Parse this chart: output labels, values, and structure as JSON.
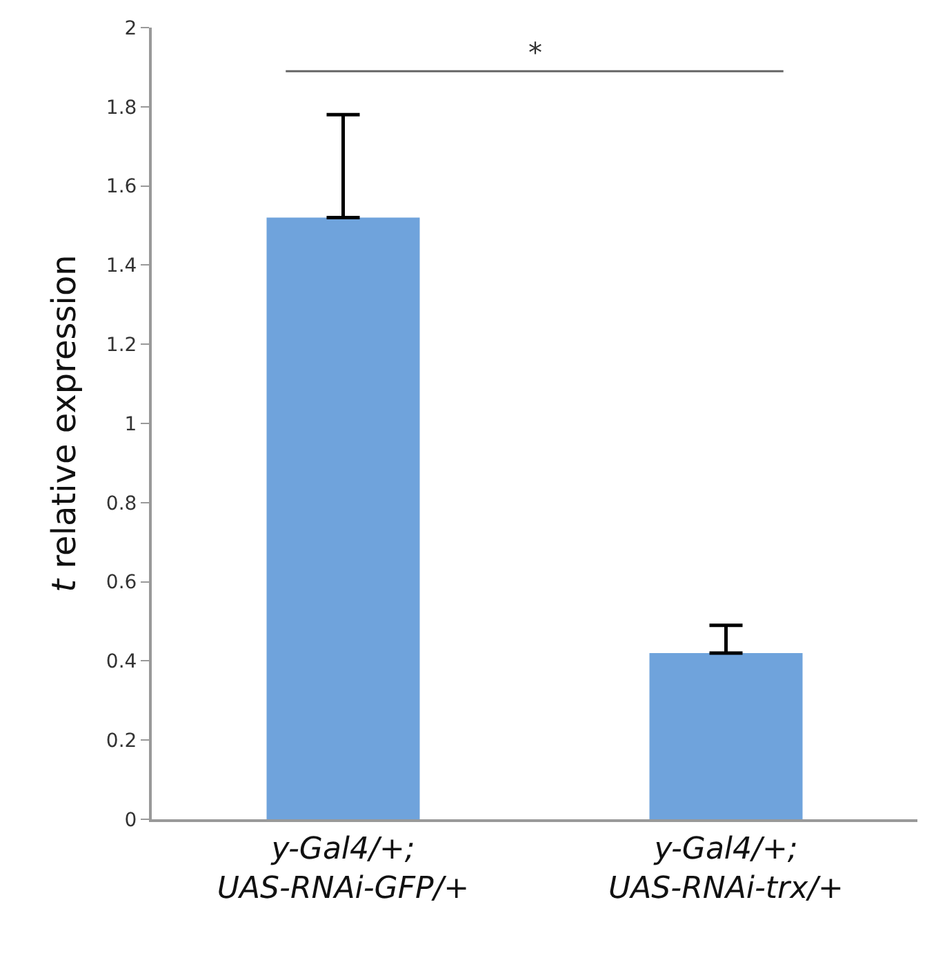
{
  "chart_data": {
    "type": "bar",
    "ylabel": "t relative expression",
    "categories": [
      "y-Gal4/+;\nUAS-RNAi-GFP/+",
      "y-Gal4/+;\nUAS-RNAi-trx/+"
    ],
    "values": [
      1.52,
      0.42
    ],
    "errors": [
      [
        1.52,
        1.78
      ],
      [
        0.42,
        0.49
      ]
    ],
    "color": "#6fa3dc",
    "ylim": [
      0,
      2
    ],
    "yticks": [
      0,
      0.2,
      0.4,
      0.6,
      0.8,
      1,
      1.2,
      1.4,
      1.6,
      1.8,
      2
    ],
    "annotations": [
      "*"
    ]
  }
}
